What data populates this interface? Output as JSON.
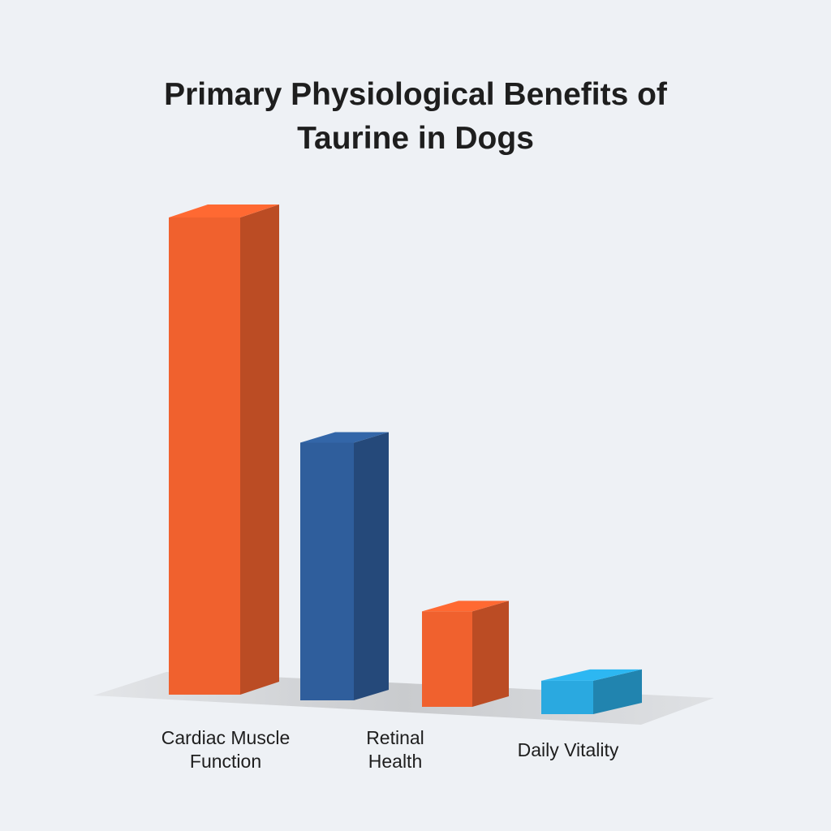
{
  "chart_data": {
    "type": "bar3d",
    "title": "Primary Physiological Benefits of Taurine in Dogs",
    "categories": [
      "Cardiac Muscle Function",
      "Retinal Health",
      null,
      "Daily Vitality"
    ],
    "values": [
      100,
      54,
      20,
      7
    ],
    "colors": [
      "#f0612e",
      "#2f5e9c",
      "#f0612e",
      "#2aa9e0"
    ]
  }
}
